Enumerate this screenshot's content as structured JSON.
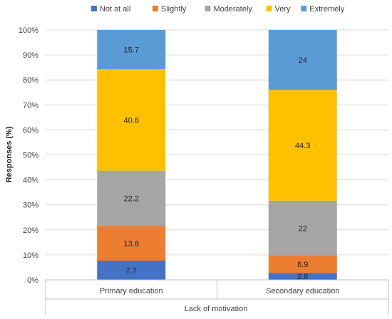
{
  "chart_data": {
    "type": "bar",
    "stacked": true,
    "categories": [
      "Primary education",
      "Secondary education"
    ],
    "group_label": "Lack of motivation",
    "ylabel": "Responses (%)",
    "ylim": [
      0,
      100
    ],
    "y_ticks": [
      "0%",
      "10%",
      "20%",
      "30%",
      "40%",
      "50%",
      "60%",
      "70%",
      "80%",
      "90%",
      "100%"
    ],
    "legend_position": "top",
    "series": [
      {
        "name": "Not at all",
        "color": "#4472C4",
        "values": [
          7.7,
          2.8
        ],
        "labels": [
          "7.7",
          "2.8"
        ]
      },
      {
        "name": "Slightly",
        "color": "#ED7D31",
        "values": [
          13.8,
          6.9
        ],
        "labels": [
          "13.8",
          "6.9"
        ]
      },
      {
        "name": "Moderately",
        "color": "#A5A5A5",
        "values": [
          22.2,
          22
        ],
        "labels": [
          "22.2",
          "22"
        ]
      },
      {
        "name": "Very",
        "color": "#FFC000",
        "values": [
          40.6,
          44.3
        ],
        "labels": [
          "40.6",
          "44.3"
        ]
      },
      {
        "name": "Extremely",
        "color": "#5B9BD5",
        "values": [
          15.7,
          24
        ],
        "labels": [
          "15.7",
          "24"
        ]
      }
    ]
  }
}
